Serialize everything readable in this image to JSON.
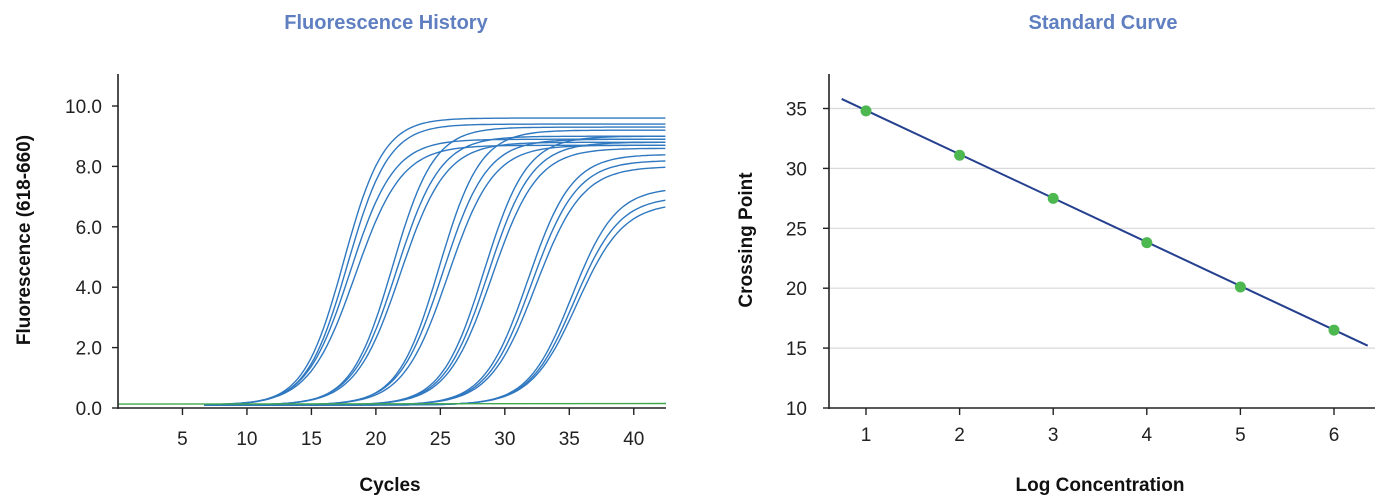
{
  "chart_data": [
    {
      "type": "line",
      "title": "Fluorescence History",
      "xlabel": "Cycles",
      "ylabel": "Fluorescence  (618-660)",
      "xlim": [
        0,
        42.5
      ],
      "ylim": [
        0,
        11
      ],
      "xticks": [
        "5",
        "10",
        "15",
        "20",
        "25",
        "30",
        "35",
        "40"
      ],
      "xtick_values": [
        5,
        10,
        15,
        20,
        25,
        30,
        35,
        40
      ],
      "yticks": [
        "0.0",
        "2.0",
        "4.0",
        "6.0",
        "8.0",
        "10.0"
      ],
      "ytick_values": [
        0,
        2,
        4,
        6,
        8,
        10
      ],
      "grid": false,
      "curve_model": {
        "baseline": 0.1,
        "start_cycle": 6.7
      },
      "series": [
        {
          "color": "#2f78c0",
          "plateau": 9.6,
          "midpoint": 17.5,
          "slope": 1.55
        },
        {
          "color": "#2f78c0",
          "plateau": 9.4,
          "midpoint": 17.8,
          "slope": 1.6
        },
        {
          "color": "#2f78c0",
          "plateau": 8.9,
          "midpoint": 18.0,
          "slope": 1.7
        },
        {
          "color": "#2f78c0",
          "plateau": 8.7,
          "midpoint": 18.4,
          "slope": 1.8
        },
        {
          "color": "#2f78c0",
          "plateau": 9.3,
          "midpoint": 21.3,
          "slope": 1.6
        },
        {
          "color": "#2f78c0",
          "plateau": 9.0,
          "midpoint": 21.6,
          "slope": 1.7
        },
        {
          "color": "#2f78c0",
          "plateau": 8.8,
          "midpoint": 21.9,
          "slope": 1.75
        },
        {
          "color": "#2f78c0",
          "plateau": 9.2,
          "midpoint": 24.9,
          "slope": 1.6
        },
        {
          "color": "#2f78c0",
          "plateau": 8.9,
          "midpoint": 25.2,
          "slope": 1.7
        },
        {
          "color": "#2f78c0",
          "plateau": 8.7,
          "midpoint": 25.6,
          "slope": 1.75
        },
        {
          "color": "#2f78c0",
          "plateau": 9.0,
          "midpoint": 28.4,
          "slope": 1.65
        },
        {
          "color": "#2f78c0",
          "plateau": 8.8,
          "midpoint": 28.7,
          "slope": 1.7
        },
        {
          "color": "#2f78c0",
          "plateau": 8.6,
          "midpoint": 29.0,
          "slope": 1.75
        },
        {
          "color": "#2f78c0",
          "plateau": 8.4,
          "midpoint": 31.8,
          "slope": 1.7
        },
        {
          "color": "#2f78c0",
          "plateau": 8.2,
          "midpoint": 32.1,
          "slope": 1.75
        },
        {
          "color": "#2f78c0",
          "plateau": 8.0,
          "midpoint": 32.4,
          "slope": 1.8
        },
        {
          "color": "#2f78c0",
          "plateau": 7.3,
          "midpoint": 35.2,
          "slope": 1.7
        },
        {
          "color": "#2f78c0",
          "plateau": 7.0,
          "midpoint": 35.4,
          "slope": 1.75
        },
        {
          "color": "#2f78c0",
          "plateau": 6.8,
          "midpoint": 35.6,
          "slope": 1.8
        },
        {
          "color": "#3fa74a",
          "flat": 0.13
        }
      ]
    },
    {
      "type": "scatter",
      "title": "Standard Curve",
      "xlabel": "Log Concentration",
      "ylabel": "Crossing Point",
      "xlim": [
        0.6,
        6.4
      ],
      "ylim": [
        10,
        37.5
      ],
      "xticks": [
        "1",
        "2",
        "3",
        "4",
        "5",
        "6"
      ],
      "xtick_values": [
        1,
        2,
        3,
        4,
        5,
        6
      ],
      "yticks": [
        "10",
        "15",
        "20",
        "25",
        "30",
        "35"
      ],
      "ytick_values": [
        10,
        15,
        20,
        25,
        30,
        35
      ],
      "grid": true,
      "points": [
        {
          "x": 1,
          "y": 34.8
        },
        {
          "x": 2,
          "y": 31.1
        },
        {
          "x": 3,
          "y": 27.5
        },
        {
          "x": 4,
          "y": 23.8
        },
        {
          "x": 5,
          "y": 20.1
        },
        {
          "x": 6,
          "y": 16.5
        }
      ],
      "point_color": "#4cb84f",
      "fit_line": {
        "x": [
          0.74,
          6.36
        ],
        "y": [
          35.8,
          15.2
        ],
        "color": "#253f8f"
      }
    }
  ]
}
